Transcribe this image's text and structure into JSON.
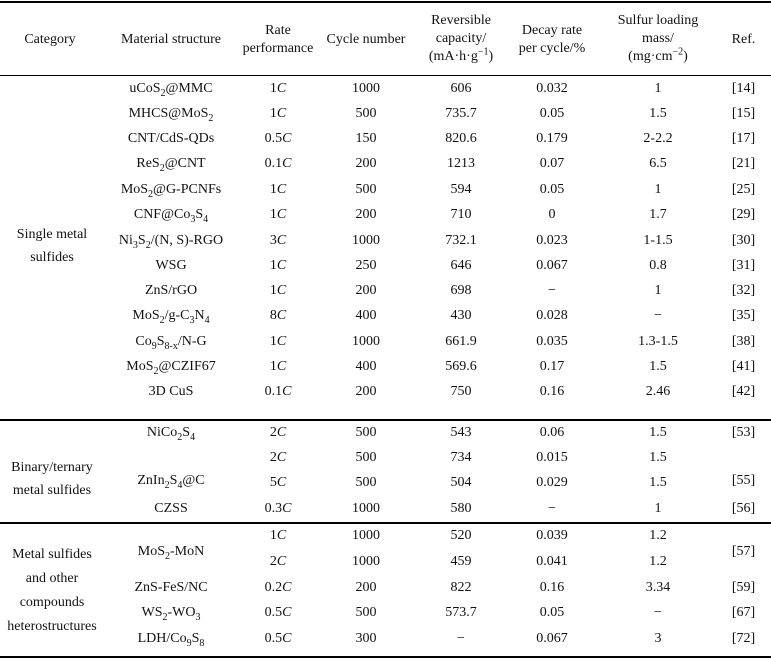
{
  "table": {
    "headers": {
      "category": "Category",
      "material": "Material structure",
      "rate1": "Rate",
      "rate2": "performance",
      "cycle": "Cycle number",
      "capacity1": "Reversible",
      "capacity2": "capacity/",
      "capacity_unit_a": "(mA·h·g",
      "capacity_unit_sup": "−1",
      "capacity_unit_b": ")",
      "decay1": "Decay rate",
      "decay2": "per cycle/%",
      "sulfur1": "Sulfur loading",
      "sulfur2": "mass/",
      "sulfur_unit_a": "(mg·cm",
      "sulfur_unit_sup": "−2",
      "sulfur_unit_b": ")",
      "ref": "Ref."
    },
    "categories": {
      "single_1": "Single metal",
      "single_2": "sulfides",
      "binary_1": "Binary/ternary",
      "binary_2": "metal sulfides",
      "hetero_1": "Metal sulfides",
      "hetero_2": "and other",
      "hetero_3": "compounds",
      "hetero_4": "heterostructures"
    },
    "rows": [
      {
        "m_a": "uCoS",
        "m_s1": "2",
        "m_b": "@MMC",
        "rate": "1",
        "cycle": "1000",
        "cap": "606",
        "decay": "0.032",
        "sulfur": "1",
        "ref": "[14]"
      },
      {
        "m_a": "MHCS@MoS",
        "m_s1": "2",
        "m_b": "",
        "rate": "1",
        "cycle": "500",
        "cap": "735.7",
        "decay": "0.05",
        "sulfur": "1.5",
        "ref": "[15]"
      },
      {
        "m_a": "CNT/CdS-QDs",
        "rate": "0.5",
        "cycle": "150",
        "cap": "820.6",
        "decay": "0.179",
        "sulfur": "2-2.2",
        "ref": "[17]"
      },
      {
        "m_a": "ReS",
        "m_s1": "2",
        "m_b": "@CNT",
        "rate": "0.1",
        "cycle": "200",
        "cap": "1213",
        "decay": "0.07",
        "sulfur": "6.5",
        "ref": "[21]"
      },
      {
        "m_a": "MoS",
        "m_s1": "2",
        "m_b": "@G-PCNFs",
        "rate": "1",
        "cycle": "500",
        "cap": "594",
        "decay": "0.05",
        "sulfur": "1",
        "ref": "[25]"
      },
      {
        "m_a": "CNF@Co",
        "m_s1": "3",
        "m_b": "S",
        "m_s2": "4",
        "rate": "1",
        "cycle": "200",
        "cap": "710",
        "decay": "0",
        "sulfur": "1.7",
        "ref": "[29]"
      },
      {
        "m_a": "Ni",
        "m_s1": "3",
        "m_b": "S",
        "m_s2": "2",
        "m_c": "/(N, S)-RGO",
        "rate": "3",
        "cycle": "1000",
        "cap": "732.1",
        "decay": "0.023",
        "sulfur": "1-1.5",
        "ref": "[30]"
      },
      {
        "m_a": "WSG",
        "rate": "1",
        "cycle": "250",
        "cap": "646",
        "decay": "0.067",
        "sulfur": "0.8",
        "ref": "[31]"
      },
      {
        "m_a": "ZnS/rGO",
        "rate": "1",
        "cycle": "200",
        "cap": "698",
        "decay": "−",
        "sulfur": "1",
        "ref": "[32]"
      },
      {
        "m_a": "MoS",
        "m_s1": "2",
        "m_b": "/g-C",
        "m_s2": "3",
        "m_c": "N",
        "m_s3": "4",
        "rate": "8",
        "cycle": "400",
        "cap": "430",
        "decay": "0.028",
        "sulfur": "−",
        "ref": "[35]"
      },
      {
        "m_a": "Co",
        "m_s1": "9",
        "m_b": "S",
        "m_s2": "8-x",
        "m_c": "/N-G",
        "rate": "1",
        "cycle": "1000",
        "cap": "661.9",
        "decay": "0.035",
        "sulfur": "1.3-1.5",
        "ref": "[38]"
      },
      {
        "m_a": "MoS",
        "m_s1": "2",
        "m_b": "@CZIF67",
        "rate": "1",
        "cycle": "400",
        "cap": "569.6",
        "decay": "0.17",
        "sulfur": "1.5",
        "ref": "[41]"
      },
      {
        "m_a": "3D CuS",
        "rate": "0.1",
        "cycle": "200",
        "cap": "750",
        "decay": "0.16",
        "sulfur": "2.46",
        "ref": "[42]"
      },
      {
        "m_a": "NiCo",
        "m_s1": "2",
        "m_b": "S",
        "m_s2": "4",
        "rate": "2",
        "cycle": "500",
        "cap": "543",
        "decay": "0.06",
        "sulfur": "1.5",
        "ref": "[53]"
      },
      {
        "m_a": "",
        "rate": "2",
        "cycle": "500",
        "cap": "734",
        "decay": "0.015",
        "sulfur": "1.5",
        "ref": ""
      },
      {
        "m_a": "",
        "rate": "5",
        "cycle": "500",
        "cap": "504",
        "decay": "0.029",
        "sulfur": "1.5",
        "ref": ""
      },
      {
        "m_a": "CZSS",
        "rate": "0.3",
        "cycle": "1000",
        "cap": "580",
        "decay": "−",
        "sulfur": "1",
        "ref": "[56]"
      },
      {
        "m_a": "",
        "rate": "1",
        "cycle": "1000",
        "cap": "520",
        "decay": "0.039",
        "sulfur": "1.2",
        "ref": ""
      },
      {
        "m_a": "",
        "rate": "2",
        "cycle": "1000",
        "cap": "459",
        "decay": "0.041",
        "sulfur": "1.2",
        "ref": ""
      },
      {
        "m_a": "ZnS-FeS/NC",
        "rate": "0.2",
        "cycle": "200",
        "cap": "822",
        "decay": "0.16",
        "sulfur": "3.34",
        "ref": "[59]"
      },
      {
        "m_a": "WS",
        "m_s1": "2",
        "m_b": "-WO",
        "m_s2": "3",
        "rate": "0.5",
        "cycle": "500",
        "cap": "573.7",
        "decay": "0.05",
        "sulfur": "−",
        "ref": "[67]"
      },
      {
        "m_a": "LDH/Co",
        "m_s1": "9",
        "m_b": "S",
        "m_s2": "8",
        "rate": "0.5",
        "cycle": "300",
        "cap": "−",
        "decay": "0.067",
        "sulfur": "3",
        "ref": "[72]"
      }
    ],
    "merged": {
      "zn_a": "ZnIn",
      "zn_s1": "2",
      "zn_b": "S",
      "zn_s2": "4",
      "zn_c": "@C",
      "zn_ref": "[55]",
      "mo_a": "MoS",
      "mo_s1": "2",
      "mo_b": "-MoN",
      "mo_ref": "[57]"
    },
    "rate_unit": "C"
  }
}
